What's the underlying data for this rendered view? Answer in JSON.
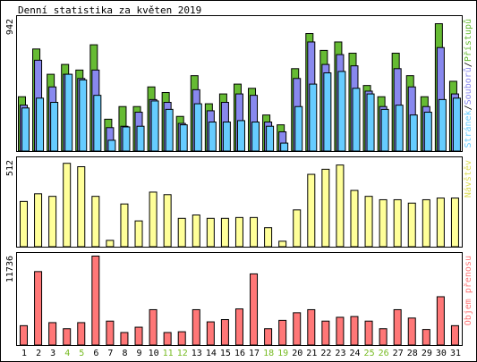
{
  "title": "Denní statistika za květen 2019",
  "colors": {
    "hits": "#66bb33",
    "files": "#8888ee",
    "pages": "#66ccff",
    "visits": "#ffff99",
    "kbytes": "#ff7777",
    "weekend_label": "#77bb22",
    "frame": "#000000"
  },
  "chart_data": [
    {
      "type": "bar",
      "ymax_label": "942",
      "ylim": [
        0,
        942
      ],
      "right_label_parts": [
        "Stránek",
        "/",
        "Souborů",
        "/",
        "Přístupů"
      ],
      "categories": [
        "1",
        "2",
        "3",
        "4",
        "5",
        "6",
        "7",
        "8",
        "9",
        "10",
        "11",
        "12",
        "13",
        "14",
        "15",
        "16",
        "17",
        "18",
        "19",
        "20",
        "21",
        "22",
        "23",
        "24",
        "25",
        "26",
        "27",
        "28",
        "29",
        "30",
        "31"
      ],
      "weekend_days": [
        "4",
        "5",
        "11",
        "12",
        "18",
        "19",
        "25",
        "26"
      ],
      "series": [
        {
          "name": "Přístupů",
          "values": [
            390,
            730,
            550,
            620,
            580,
            760,
            230,
            320,
            320,
            460,
            420,
            250,
            540,
            340,
            410,
            480,
            450,
            260,
            190,
            590,
            840,
            720,
            780,
            700,
            470,
            390,
            700,
            540,
            390,
            910,
            500
          ]
        },
        {
          "name": "Souborů",
          "values": [
            330,
            650,
            460,
            550,
            520,
            580,
            170,
            180,
            280,
            370,
            350,
            200,
            440,
            290,
            350,
            410,
            400,
            210,
            140,
            520,
            780,
            620,
            690,
            610,
            430,
            320,
            590,
            460,
            320,
            740,
            410
          ]
        },
        {
          "name": "Stránek",
          "values": [
            310,
            380,
            350,
            550,
            510,
            400,
            80,
            175,
            180,
            360,
            300,
            190,
            340,
            210,
            210,
            220,
            210,
            180,
            60,
            320,
            480,
            560,
            570,
            450,
            410,
            300,
            330,
            260,
            280,
            370,
            380
          ]
        }
      ]
    },
    {
      "type": "bar",
      "ymax_label": "512",
      "ylim": [
        0,
        512
      ],
      "right_label_parts": [
        "Návštěv"
      ],
      "categories": [
        "1",
        "2",
        "3",
        "4",
        "5",
        "6",
        "7",
        "8",
        "9",
        "10",
        "11",
        "12",
        "13",
        "14",
        "15",
        "16",
        "17",
        "18",
        "19",
        "20",
        "21",
        "22",
        "23",
        "24",
        "25",
        "26",
        "27",
        "28",
        "29",
        "30",
        "31"
      ],
      "series": [
        {
          "name": "Návštěv",
          "values": [
            270,
            315,
            300,
            495,
            475,
            300,
            40,
            255,
            155,
            325,
            310,
            170,
            190,
            170,
            170,
            175,
            175,
            115,
            35,
            220,
            430,
            460,
            485,
            335,
            300,
            280,
            280,
            260,
            280,
            290,
            290
          ]
        }
      ]
    },
    {
      "type": "bar",
      "ymax_label": "11736",
      "ylim": [
        0,
        11736
      ],
      "right_label_parts": [
        "Objem přenosu"
      ],
      "categories": [
        "1",
        "2",
        "3",
        "4",
        "5",
        "6",
        "7",
        "8",
        "9",
        "10",
        "11",
        "12",
        "13",
        "14",
        "15",
        "16",
        "17",
        "18",
        "19",
        "20",
        "21",
        "22",
        "23",
        "24",
        "25",
        "26",
        "27",
        "28",
        "29",
        "30",
        "31"
      ],
      "series": [
        {
          "name": "Objem přenosu",
          "values": [
            2600,
            9700,
            3000,
            2200,
            3000,
            11736,
            3200,
            1700,
            2400,
            4700,
            1700,
            1800,
            4700,
            3100,
            3400,
            4800,
            9400,
            2200,
            3300,
            4300,
            4700,
            3200,
            3700,
            3800,
            3200,
            2200,
            4700,
            3600,
            2100,
            6400,
            2600
          ]
        }
      ]
    }
  ]
}
